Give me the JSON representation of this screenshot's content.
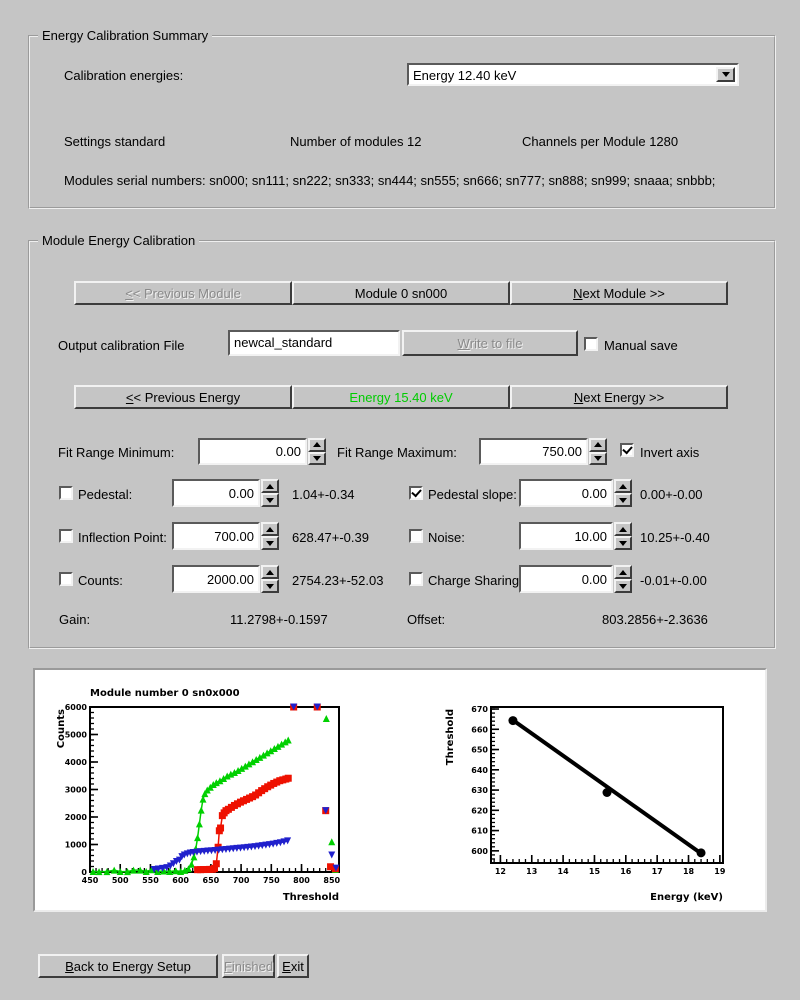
{
  "summary": {
    "title": "Energy Calibration Summary",
    "calibration_energies_label": "Calibration energies:",
    "energy_select_value": "Energy 12.40 keV",
    "settings_text": "Settings standard",
    "modules_text": "Number of modules 12",
    "channels_text": "Channels per Module 1280",
    "serials_text": "Modules serial numbers: sn000; sn111; sn222; sn333; sn444; sn555; sn666; sn777; sn888; sn999; snaaa; snbbb;"
  },
  "module_cal": {
    "title": "Module Energy Calibration",
    "prev_module": {
      "label": "<< Previous Module",
      "mnemonic": "<",
      "disabled": true
    },
    "module_button_label": "Module 0 sn000",
    "next_module": {
      "label": "Next Module >>",
      "mnemonic": "N",
      "disabled": false
    },
    "output_file_label": "Output calibration File",
    "output_file_value": "newcal_standard",
    "write_button": {
      "label": "Write to file",
      "mnemonic": "W",
      "disabled": true
    },
    "manual_save": {
      "label": "Manual save",
      "checked": false
    },
    "prev_energy": {
      "label": "<< Previous Energy",
      "mnemonic": "<",
      "disabled": false
    },
    "current_energy": {
      "label": "Energy 15.40 keV",
      "color": "#00cc00"
    },
    "next_energy": {
      "label": "Next Energy >>",
      "mnemonic": "N",
      "disabled": false
    },
    "fit_min": {
      "label": "Fit Range Minimum:",
      "value": "0.00"
    },
    "fit_max": {
      "label": "Fit Range Maximum:",
      "value": "750.00"
    },
    "invert_axis": {
      "label": "Invert axis",
      "checked": true
    },
    "params": [
      {
        "label": "Pedestal:",
        "checkbox_checked": false,
        "value": "0.00",
        "result": "1.04+-0.34"
      },
      {
        "label": "Pedestal slope:",
        "checkbox_checked": true,
        "value": "0.00",
        "result": "0.00+-0.00"
      },
      {
        "label": "Inflection Point:",
        "checkbox_checked": false,
        "value": "700.00",
        "result": "628.47+-0.39"
      },
      {
        "label": "Noise:",
        "checkbox_checked": false,
        "value": "10.00",
        "result": "10.25+-0.40"
      },
      {
        "label": "Counts:",
        "checkbox_checked": false,
        "value": "2000.00",
        "result": "2754.23+-52.03"
      },
      {
        "label": "Charge Sharing",
        "checkbox_checked": false,
        "value": "0.00",
        "result": "-0.01+-0.00"
      }
    ],
    "gain": {
      "label": "Gain:",
      "value": "11.2798+-0.1597"
    },
    "offset": {
      "label": "Offset:",
      "value": "803.2856+-2.3636"
    }
  },
  "footer": {
    "back": {
      "label": "Back to Energy Setup",
      "mnemonic": "B",
      "disabled": false
    },
    "finished": {
      "label": "Finished",
      "mnemonic": "F",
      "disabled": true
    },
    "exit": {
      "label": "Exit",
      "mnemonic": "E",
      "disabled": false
    }
  },
  "chart_data": [
    {
      "type": "scatter",
      "title": "Module number 0 sn0x000",
      "xlabel": "Threshold",
      "ylabel": "Counts",
      "xlim": [
        450,
        862
      ],
      "ylim": [
        0,
        6000
      ],
      "xticks": [
        450,
        500,
        550,
        600,
        650,
        700,
        750,
        800,
        850
      ],
      "yticks": [
        0,
        1000,
        2000,
        3000,
        4000,
        5000,
        6000
      ],
      "xminor": 10,
      "yminor": 200,
      "grid": false,
      "legend": "none",
      "series": [
        {
          "name": "green-triangles-scurve",
          "color": "#00d000",
          "marker": "triangle-up",
          "size": 3.5,
          "line": true,
          "linewidth": 1.5,
          "points": [
            [
              455,
              20
            ],
            [
              465,
              15
            ],
            [
              478,
              15
            ],
            [
              490,
              70
            ],
            [
              500,
              20
            ],
            [
              512,
              15
            ],
            [
              522,
              70
            ],
            [
              533,
              70
            ],
            [
              543,
              20
            ],
            [
              552,
              80
            ],
            [
              562,
              20
            ],
            [
              572,
              35
            ],
            [
              582,
              20
            ],
            [
              592,
              45
            ],
            [
              600,
              20
            ],
            [
              607,
              60
            ],
            [
              613,
              120
            ],
            [
              618,
              280
            ],
            [
              622,
              550
            ],
            [
              625,
              850
            ],
            [
              628,
              1250
            ],
            [
              631,
              1750
            ],
            [
              634,
              2250
            ],
            [
              637,
              2650
            ],
            [
              640,
              2850
            ],
            [
              644,
              2980
            ],
            [
              649,
              3080
            ],
            [
              654,
              3180
            ],
            [
              659,
              3250
            ],
            [
              665,
              3320
            ],
            [
              671,
              3400
            ],
            [
              677,
              3490
            ],
            [
              683,
              3560
            ],
            [
              689,
              3620
            ],
            [
              695,
              3690
            ],
            [
              701,
              3770
            ],
            [
              707,
              3850
            ],
            [
              713,
              3930
            ],
            [
              719,
              4010
            ],
            [
              725,
              4090
            ],
            [
              731,
              4170
            ],
            [
              737,
              4250
            ],
            [
              743,
              4330
            ],
            [
              749,
              4410
            ],
            [
              755,
              4490
            ],
            [
              761,
              4570
            ],
            [
              767,
              4650
            ],
            [
              773,
              4730
            ],
            [
              778,
              4800
            ]
          ]
        },
        {
          "name": "green-triangles-tail",
          "color": "#00d000",
          "marker": "triangle-up",
          "size": 3.5,
          "line": false,
          "points": [
            [
              787,
              6000
            ],
            [
              826,
              6000
            ],
            [
              841,
              5580
            ],
            [
              850,
              1100
            ],
            [
              856,
              90
            ]
          ]
        },
        {
          "name": "red-squares-scurve",
          "color": "#ee1100",
          "marker": "square",
          "size": 3.5,
          "line": true,
          "linewidth": 1.5,
          "points": [
            [
              628,
              85
            ],
            [
              633,
              85
            ],
            [
              638,
              90
            ],
            [
              643,
              90
            ],
            [
              648,
              95
            ],
            [
              653,
              100
            ],
            [
              656,
              130
            ],
            [
              659,
              300
            ],
            [
              662,
              900
            ],
            [
              664,
              1500
            ],
            [
              666,
              1600
            ],
            [
              669,
              2050
            ],
            [
              672,
              2150
            ],
            [
              675,
              2230
            ],
            [
              679,
              2280
            ],
            [
              684,
              2350
            ],
            [
              689,
              2420
            ],
            [
              694,
              2480
            ],
            [
              699,
              2540
            ],
            [
              704,
              2590
            ],
            [
              709,
              2640
            ],
            [
              714,
              2690
            ],
            [
              719,
              2740
            ],
            [
              724,
              2800
            ],
            [
              729,
              2880
            ],
            [
              734,
              2960
            ],
            [
              739,
              3030
            ],
            [
              744,
              3100
            ],
            [
              749,
              3160
            ],
            [
              754,
              3220
            ],
            [
              759,
              3270
            ],
            [
              764,
              3320
            ],
            [
              769,
              3350
            ],
            [
              774,
              3380
            ],
            [
              778,
              3410
            ]
          ]
        },
        {
          "name": "red-squares-tail",
          "color": "#ee1100",
          "marker": "square",
          "size": 3.5,
          "line": false,
          "points": [
            [
              787,
              6000
            ],
            [
              826,
              6000
            ],
            [
              840,
              2230
            ],
            [
              848,
              190
            ],
            [
              856,
              120
            ]
          ]
        },
        {
          "name": "blue-triangles-scurve",
          "color": "#2020cc",
          "marker": "triangle-down",
          "size": 3.5,
          "line": true,
          "linewidth": 1.5,
          "points": [
            [
              556,
              90
            ],
            [
              563,
              110
            ],
            [
              570,
              130
            ],
            [
              577,
              160
            ],
            [
              583,
              220
            ],
            [
              588,
              300
            ],
            [
              593,
              380
            ],
            [
              598,
              430
            ],
            [
              602,
              560
            ],
            [
              606,
              620
            ],
            [
              611,
              660
            ],
            [
              616,
              690
            ],
            [
              621,
              710
            ],
            [
              627,
              725
            ],
            [
              633,
              740
            ],
            [
              639,
              750
            ],
            [
              645,
              762
            ],
            [
              651,
              773
            ],
            [
              657,
              784
            ],
            [
              663,
              795
            ],
            [
              669,
              808
            ],
            [
              675,
              820
            ],
            [
              681,
              832
            ],
            [
              687,
              845
            ],
            [
              693,
              858
            ],
            [
              699,
              870
            ],
            [
              705,
              882
            ],
            [
              711,
              895
            ],
            [
              717,
              910
            ],
            [
              723,
              925
            ],
            [
              729,
              940
            ],
            [
              735,
              958
            ],
            [
              741,
              976
            ],
            [
              747,
              995
            ],
            [
              753,
              1015
            ],
            [
              759,
              1040
            ],
            [
              765,
              1065
            ],
            [
              771,
              1095
            ],
            [
              777,
              1130
            ]
          ]
        },
        {
          "name": "blue-triangles-tail",
          "color": "#2020cc",
          "marker": "triangle-down",
          "size": 3.5,
          "line": false,
          "points": [
            [
              787,
              6000
            ],
            [
              826,
              6000
            ],
            [
              840,
              2230
            ],
            [
              850,
              620
            ],
            [
              857,
              140
            ]
          ]
        }
      ]
    },
    {
      "type": "scatter",
      "title": "",
      "xlabel": "Energy (keV)",
      "ylabel": "Threshold",
      "xlim": [
        11.7,
        19.1
      ],
      "ylim": [
        594,
        671
      ],
      "xticks": [
        12,
        13,
        14,
        15,
        16,
        17,
        18,
        19
      ],
      "yticks": [
        600,
        610,
        620,
        630,
        640,
        650,
        660,
        670
      ],
      "xminor": 0.2,
      "yminor": 2,
      "grid": false,
      "legend": "none",
      "series": [
        {
          "name": "linear-fit-line",
          "color": "#000000",
          "marker": "none",
          "size": 0,
          "line": true,
          "linewidth": 4,
          "points": [
            [
              12.42,
              664.3
            ],
            [
              18.45,
              598.2
            ]
          ]
        },
        {
          "name": "calibration-points",
          "color": "#000000",
          "marker": "circle",
          "size": 4.5,
          "line": false,
          "points": [
            [
              12.4,
              664.3
            ],
            [
              15.4,
              628.8
            ],
            [
              18.4,
              599.0
            ]
          ]
        }
      ]
    }
  ]
}
